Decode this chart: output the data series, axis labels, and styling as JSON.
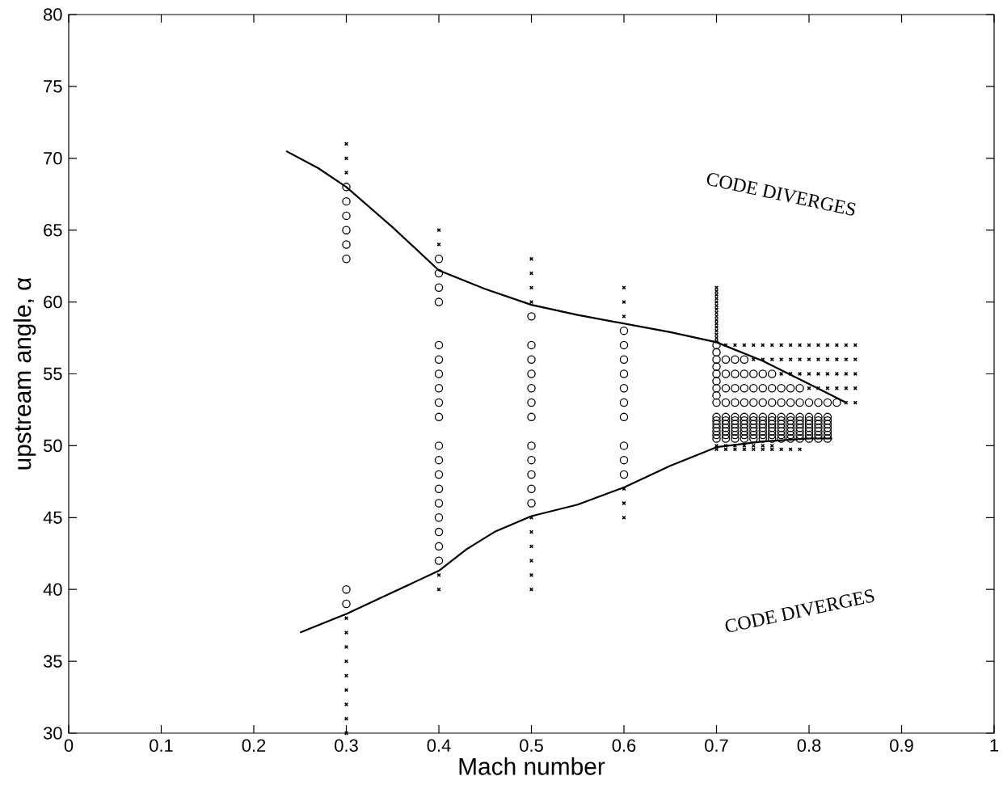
{
  "chart_data": {
    "type": "scatter",
    "xlabel": "Mach number",
    "ylabel": "upstream angle, α",
    "xlim": [
      0,
      1
    ],
    "ylim": [
      30,
      80
    ],
    "xticks": [
      0,
      0.1,
      0.2,
      0.3,
      0.4,
      0.5,
      0.6,
      0.7,
      0.8,
      0.9,
      1
    ],
    "yticks": [
      30,
      35,
      40,
      45,
      50,
      55,
      60,
      65,
      70,
      75,
      80
    ],
    "grid": false,
    "annotations": [
      "CODE DIVERGES",
      "CODE DIVERGES"
    ],
    "series": [
      {
        "marker": "circle",
        "color": "#000000",
        "x": [
          0.3,
          0.3,
          0.3,
          0.3,
          0.3,
          0.3,
          0.3,
          0.3,
          0.4,
          0.4,
          0.4,
          0.4,
          0.4,
          0.4,
          0.4,
          0.4,
          0.4,
          0.4,
          0.4,
          0.4,
          0.4,
          0.4,
          0.4,
          0.4,
          0.4,
          0.4,
          0.4,
          0.5,
          0.5,
          0.5,
          0.5,
          0.5,
          0.5,
          0.5,
          0.5,
          0.5,
          0.5,
          0.5,
          0.5,
          0.6,
          0.6,
          0.6,
          0.6,
          0.6,
          0.6,
          0.6,
          0.6,
          0.6,
          0.6
        ],
        "values": [
          68,
          67,
          66,
          65,
          64,
          63,
          40,
          39,
          63,
          62,
          61,
          60,
          57,
          56,
          55,
          54,
          53,
          52,
          50,
          49,
          48,
          47,
          46,
          45,
          44,
          43,
          42,
          59,
          57,
          56,
          55,
          54,
          53,
          52,
          50,
          49,
          48,
          47,
          46,
          58,
          57,
          56,
          55,
          54,
          53,
          52,
          50,
          49,
          48
        ]
      },
      {
        "marker": "circle",
        "color": "#000000",
        "x": [
          0.7,
          0.7,
          0.7,
          0.7,
          0.7,
          0.7,
          0.7,
          0.7,
          0.7,
          0.71,
          0.72,
          0.73,
          0.71,
          0.72,
          0.73,
          0.74,
          0.75,
          0.76,
          0.71,
          0.72,
          0.73,
          0.74,
          0.75,
          0.76,
          0.77,
          0.78,
          0.79,
          0.71,
          0.72,
          0.73,
          0.74,
          0.75,
          0.76,
          0.77,
          0.78,
          0.79,
          0.8,
          0.81,
          0.82,
          0.83
        ],
        "values": [
          57,
          56.5,
          56,
          55.5,
          55,
          54.5,
          54,
          53.5,
          53,
          56,
          56,
          56,
          55,
          55,
          55,
          55,
          55,
          55,
          54,
          54,
          54,
          54,
          54,
          54,
          54,
          54,
          54,
          53,
          53,
          53,
          53,
          53,
          53,
          53,
          53,
          53,
          53,
          53,
          53,
          53
        ]
      },
      {
        "marker": "circle",
        "color": "#000000",
        "x": [
          0.7,
          0.7,
          0.7,
          0.7,
          0.7,
          0.7,
          0.7,
          0.71,
          0.71,
          0.71,
          0.71,
          0.71,
          0.71,
          0.71,
          0.72,
          0.72,
          0.72,
          0.72,
          0.72,
          0.72,
          0.72,
          0.73,
          0.73,
          0.73,
          0.73,
          0.73,
          0.73,
          0.73,
          0.74,
          0.74,
          0.74,
          0.74,
          0.74,
          0.74,
          0.74,
          0.75,
          0.75,
          0.75,
          0.75,
          0.75,
          0.75,
          0.75,
          0.76,
          0.76,
          0.76,
          0.76,
          0.76,
          0.76,
          0.76,
          0.77,
          0.77,
          0.77,
          0.77,
          0.77,
          0.77,
          0.77,
          0.78,
          0.78,
          0.78,
          0.78,
          0.78,
          0.78,
          0.78,
          0.79,
          0.79,
          0.79,
          0.79,
          0.79,
          0.79,
          0.79,
          0.8,
          0.8,
          0.8,
          0.8,
          0.8,
          0.8,
          0.8,
          0.81,
          0.81,
          0.81,
          0.81,
          0.81,
          0.81,
          0.81,
          0.82,
          0.82,
          0.82,
          0.82,
          0.82,
          0.82,
          0.82
        ],
        "values": [
          50.5,
          50.75,
          51,
          51.25,
          51.5,
          51.75,
          52,
          50.5,
          50.75,
          51,
          51.25,
          51.5,
          51.75,
          52,
          50.5,
          50.75,
          51,
          51.25,
          51.5,
          51.75,
          52,
          50.5,
          50.75,
          51,
          51.25,
          51.5,
          51.75,
          52,
          50.5,
          50.75,
          51,
          51.25,
          51.5,
          51.75,
          52,
          50.5,
          50.75,
          51,
          51.25,
          51.5,
          51.75,
          52,
          50.5,
          50.75,
          51,
          51.25,
          51.5,
          51.75,
          52,
          50.5,
          50.75,
          51,
          51.25,
          51.5,
          51.75,
          52,
          50.5,
          50.75,
          51,
          51.25,
          51.5,
          51.75,
          52,
          50.5,
          50.75,
          51,
          51.25,
          51.5,
          51.75,
          52,
          50.5,
          50.75,
          51,
          51.25,
          51.5,
          51.75,
          52,
          50.5,
          50.75,
          51,
          51.25,
          51.5,
          51.75,
          52,
          50.5,
          50.75,
          51,
          51.25,
          51.5,
          51.75,
          52
        ]
      },
      {
        "marker": "cross",
        "color": "#000000",
        "x": [
          0.3,
          0.3,
          0.3,
          0.3,
          0.3,
          0.3,
          0.3,
          0.3,
          0.3,
          0.3,
          0.3,
          0.3,
          0.4,
          0.4,
          0.4,
          0.4,
          0.5,
          0.5,
          0.5,
          0.5,
          0.5,
          0.5,
          0.5,
          0.5,
          0.5,
          0.5,
          0.6,
          0.6,
          0.6,
          0.6,
          0.6,
          0.6
        ],
        "values": [
          71,
          70,
          69,
          38,
          37,
          36,
          35,
          34,
          33,
          32,
          31,
          30,
          65,
          64,
          41,
          40,
          63,
          62,
          61,
          60,
          45,
          44,
          43,
          42,
          41,
          40,
          61,
          60,
          59,
          47,
          46,
          45
        ]
      },
      {
        "marker": "cross",
        "color": "#000000",
        "x": [
          0.7,
          0.7,
          0.7,
          0.7,
          0.7,
          0.7,
          0.7,
          0.7,
          0.7,
          0.7,
          0.7,
          0.7,
          0.7,
          0.7,
          0.7,
          0.7,
          0.71,
          0.72,
          0.73,
          0.74,
          0.75,
          0.76,
          0.77,
          0.78,
          0.79,
          0.8,
          0.81,
          0.82,
          0.83,
          0.84,
          0.85,
          0.74,
          0.75,
          0.76,
          0.77,
          0.78,
          0.79,
          0.8,
          0.81,
          0.82,
          0.83,
          0.84,
          0.85,
          0.77,
          0.78,
          0.79,
          0.8,
          0.81,
          0.82,
          0.83,
          0.84,
          0.85,
          0.8,
          0.81,
          0.82,
          0.83,
          0.84,
          0.85,
          0.84,
          0.85
        ],
        "values": [
          57.25,
          57.5,
          57.75,
          58,
          58.25,
          58.5,
          58.75,
          59,
          59.25,
          59.5,
          59.75,
          60,
          60.25,
          60.5,
          60.75,
          61,
          57,
          57,
          57,
          57,
          57,
          57,
          57,
          57,
          57,
          57,
          57,
          57,
          57,
          57,
          57,
          56,
          56,
          56,
          56,
          56,
          56,
          56,
          56,
          56,
          56,
          56,
          56,
          55,
          55,
          55,
          55,
          55,
          55,
          55,
          55,
          55,
          54,
          54,
          54,
          54,
          54,
          54,
          53,
          53
        ]
      },
      {
        "marker": "cross",
        "color": "#000000",
        "x": [
          0.7,
          0.71,
          0.72,
          0.73,
          0.74,
          0.75,
          0.76,
          0.7,
          0.71,
          0.72,
          0.73,
          0.74,
          0.75,
          0.76,
          0.77,
          0.78,
          0.79
        ],
        "values": [
          50,
          50,
          50,
          50,
          50,
          50,
          50,
          49.75,
          49.75,
          49.75,
          49.75,
          49.75,
          49.75,
          49.75,
          49.75,
          49.75,
          49.75
        ]
      },
      {
        "type": "line",
        "marker": "none",
        "line_style": "solid",
        "color": "#000000",
        "x": [
          0.235,
          0.27,
          0.3,
          0.35,
          0.4,
          0.45,
          0.5,
          0.55,
          0.6,
          0.65,
          0.7,
          0.75,
          0.8,
          0.84
        ],
        "values": [
          70.5,
          69.3,
          68,
          65.2,
          62.2,
          60.9,
          59.8,
          59.1,
          58.5,
          57.9,
          57.2,
          55.9,
          54.3,
          53.0
        ]
      },
      {
        "type": "line",
        "marker": "none",
        "line_style": "solid",
        "color": "#000000",
        "x": [
          0.25,
          0.3,
          0.35,
          0.4,
          0.43,
          0.46,
          0.5,
          0.55,
          0.6,
          0.65,
          0.7,
          0.75,
          0.8,
          0.825
        ],
        "values": [
          37,
          38.3,
          39.8,
          41.3,
          42.8,
          44,
          45.1,
          45.9,
          47.1,
          48.6,
          49.9,
          50.3,
          50.5,
          50.5
        ]
      }
    ]
  }
}
